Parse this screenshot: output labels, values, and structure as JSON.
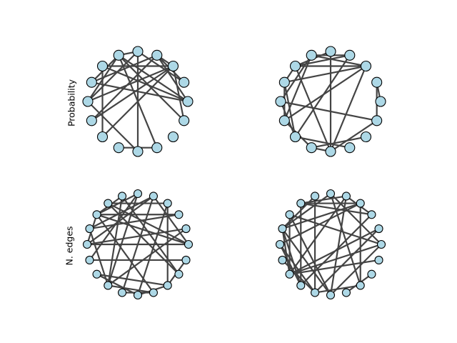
{
  "row_labels": [
    "Probability",
    "N. edges"
  ],
  "colors": {
    "node_fill": "#add8e6",
    "node_stroke": "#000000",
    "edge": "#444444"
  },
  "panels": [
    {
      "id": "probability-left",
      "row": 0,
      "col": 0,
      "n_nodes": 16,
      "node_radius": 7,
      "edges": [
        [
          12,
          8
        ],
        [
          12,
          4
        ],
        [
          10,
          6
        ],
        [
          10,
          2
        ],
        [
          9,
          2
        ],
        [
          9,
          3
        ],
        [
          8,
          5
        ],
        [
          8,
          4
        ],
        [
          8,
          2
        ],
        [
          7,
          5
        ],
        [
          7,
          3
        ],
        [
          7,
          0
        ],
        [
          6,
          2
        ],
        [
          6,
          0
        ],
        [
          5,
          4
        ],
        [
          5,
          0
        ],
        [
          3,
          0
        ],
        [
          3,
          1
        ],
        [
          3,
          2
        ],
        [
          4,
          1
        ],
        [
          2,
          15
        ],
        [
          11,
          13
        ],
        [
          5,
          13
        ],
        [
          5,
          15
        ]
      ]
    },
    {
      "id": "probability-right",
      "row": 0,
      "col": 1,
      "n_nodes": 16,
      "node_radius": 7,
      "edges": [
        [
          0,
          1
        ],
        [
          1,
          15
        ],
        [
          2,
          5
        ],
        [
          2,
          6
        ],
        [
          2,
          7
        ],
        [
          2,
          9
        ],
        [
          2,
          12
        ],
        [
          3,
          5
        ],
        [
          3,
          6
        ],
        [
          3,
          10
        ],
        [
          4,
          6
        ],
        [
          4,
          12
        ],
        [
          5,
          8
        ],
        [
          5,
          9
        ],
        [
          6,
          7
        ],
        [
          6,
          12
        ],
        [
          7,
          9
        ],
        [
          7,
          10
        ],
        [
          8,
          10
        ],
        [
          8,
          15
        ],
        [
          9,
          11
        ],
        [
          10,
          13
        ],
        [
          11,
          12
        ],
        [
          11,
          14
        ],
        [
          12,
          15
        ]
      ]
    },
    {
      "id": "n-edges-left",
      "row": 1,
      "col": 0,
      "n_nodes": 20,
      "node_radius": 5.5,
      "edges": [
        [
          0,
          4
        ],
        [
          0,
          7
        ],
        [
          0,
          8
        ],
        [
          0,
          10
        ],
        [
          1,
          10
        ],
        [
          1,
          13
        ],
        [
          2,
          8
        ],
        [
          2,
          9
        ],
        [
          3,
          7
        ],
        [
          3,
          15
        ],
        [
          3,
          17
        ],
        [
          4,
          9
        ],
        [
          4,
          10
        ],
        [
          4,
          14
        ],
        [
          5,
          8
        ],
        [
          5,
          11
        ],
        [
          5,
          13
        ],
        [
          6,
          8
        ],
        [
          6,
          13
        ],
        [
          6,
          18
        ],
        [
          7,
          18
        ],
        [
          8,
          16
        ],
        [
          8,
          10
        ],
        [
          9,
          13
        ],
        [
          11,
          19
        ],
        [
          12,
          15
        ],
        [
          12,
          17
        ],
        [
          13,
          16
        ],
        [
          14,
          16
        ],
        [
          15,
          17
        ],
        [
          17,
          19
        ]
      ]
    },
    {
      "id": "n-edges-right",
      "row": 1,
      "col": 1,
      "n_nodes": 20,
      "node_radius": 5.5,
      "edges": [
        [
          0,
          5
        ],
        [
          0,
          8
        ],
        [
          0,
          12
        ],
        [
          0,
          15
        ],
        [
          1,
          12
        ],
        [
          1,
          14
        ],
        [
          2,
          4
        ],
        [
          2,
          7
        ],
        [
          2,
          13
        ],
        [
          3,
          7
        ],
        [
          3,
          9
        ],
        [
          3,
          10
        ],
        [
          3,
          17
        ],
        [
          4,
          7
        ],
        [
          4,
          12
        ],
        [
          4,
          15
        ],
        [
          5,
          9
        ],
        [
          5,
          17
        ],
        [
          6,
          9
        ],
        [
          6,
          14
        ],
        [
          7,
          13
        ],
        [
          8,
          12
        ],
        [
          8,
          15
        ],
        [
          9,
          12
        ],
        [
          9,
          13
        ],
        [
          9,
          15
        ],
        [
          10,
          13
        ],
        [
          10,
          14
        ],
        [
          11,
          14
        ],
        [
          12,
          19
        ],
        [
          14,
          17
        ],
        [
          16,
          18
        ]
      ]
    }
  ]
}
